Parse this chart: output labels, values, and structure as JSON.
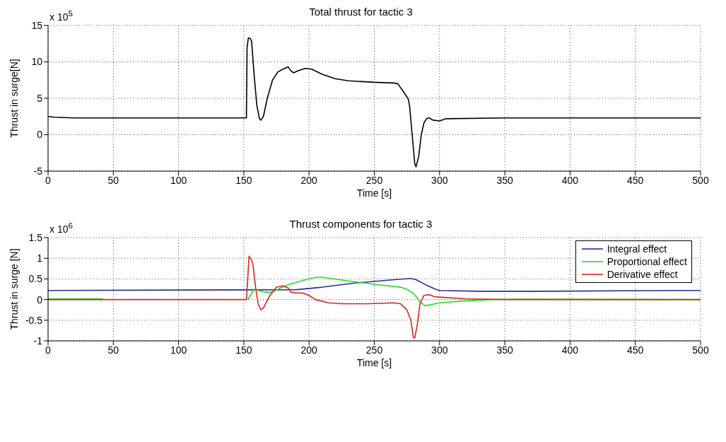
{
  "chart_data": [
    {
      "type": "line",
      "title": "Total thrust for tactic 3",
      "xlabel": "Time [s]",
      "ylabel": "Thrust in surge[N]",
      "annotations": [
        "x 10$^{5}$"
      ],
      "xlim": [
        0,
        500
      ],
      "xticks": [
        0,
        50,
        100,
        150,
        200,
        250,
        300,
        350,
        400,
        450,
        500
      ],
      "ylim": [
        -5,
        15
      ],
      "yticks": [
        -5,
        0,
        5,
        10,
        15
      ],
      "grid": true,
      "legend": false,
      "line_style": "solid",
      "series": [
        {
          "color": "#000000",
          "x": [
            0,
            5,
            20,
            152,
            152.5,
            153.5,
            155,
            156,
            158,
            160,
            162,
            163,
            165,
            168,
            172,
            176,
            180,
            184,
            186,
            188,
            192,
            197,
            202,
            210,
            220,
            230,
            250,
            265,
            268,
            272,
            276,
            277,
            279,
            281,
            282,
            284,
            286,
            288,
            290,
            292,
            295,
            300,
            305,
            350,
            500
          ],
          "values": [
            2.5,
            2.4,
            2.3,
            2.3,
            12,
            13.3,
            13.2,
            12.8,
            8,
            4,
            2.2,
            2.0,
            2.5,
            5,
            7.5,
            8.6,
            9.0,
            9.3,
            8.8,
            8.5,
            8.8,
            9.1,
            9.0,
            8.3,
            7.7,
            7.4,
            7.2,
            7.1,
            7.0,
            6.0,
            4.9,
            4.0,
            0,
            -4.0,
            -4.4,
            -3,
            0,
            1.6,
            2.2,
            2.3,
            2.0,
            1.9,
            2.2,
            2.3,
            2.3
          ]
        }
      ]
    },
    {
      "type": "line",
      "title": "Thrust components for tactic 3",
      "xlabel": "Time [s]",
      "ylabel": "Thrust in surge [N]",
      "annotations": [
        "x 10$^{6}$"
      ],
      "xlim": [
        0,
        500
      ],
      "xticks": [
        0,
        50,
        100,
        150,
        200,
        250,
        300,
        350,
        400,
        450,
        500
      ],
      "ylim": [
        -1,
        1.5
      ],
      "yticks": [
        -1,
        -0.5,
        0,
        0.5,
        1,
        1.5
      ],
      "grid": true,
      "legend": "top right",
      "line_style": "solid",
      "series": [
        {
          "name": "Integral effect",
          "color": "#2b2b9c",
          "x": [
            0,
            190,
            210,
            235,
            265,
            278,
            282,
            290,
            297,
            300,
            330,
            370,
            480,
            500
          ],
          "values": [
            0.22,
            0.24,
            0.3,
            0.4,
            0.48,
            0.51,
            0.48,
            0.35,
            0.25,
            0.22,
            0.2,
            0.2,
            0.22,
            0.22
          ]
        },
        {
          "name": "Proportional effect",
          "color": "#22dd22",
          "x": [
            0,
            42,
            43,
            152,
            153,
            158,
            160,
            166,
            172,
            178,
            185,
            195,
            205,
            210,
            230,
            250,
            270,
            275,
            280,
            285,
            289,
            300,
            320,
            340,
            360,
            500
          ],
          "values": [
            0.02,
            0.02,
            null,
            null,
            0,
            0.25,
            0.23,
            0.18,
            0.18,
            0.28,
            0.37,
            0.46,
            0.54,
            0.54,
            0.45,
            0.37,
            0.3,
            0.25,
            0.15,
            -0.05,
            -0.15,
            -0.08,
            -0.03,
            0,
            0.01,
            0
          ]
        },
        {
          "name": "Derivative effect",
          "color": "#dd2222",
          "x": [
            0,
            152,
            153,
            154,
            156,
            157,
            159,
            161,
            163,
            165,
            170,
            175,
            180,
            184,
            186,
            190,
            195,
            200,
            205,
            215,
            225,
            245,
            265,
            270,
            275,
            278,
            280,
            281,
            283,
            285,
            288,
            292,
            296,
            300,
            320,
            350,
            500
          ],
          "values": [
            0,
            0,
            0.5,
            1.05,
            0.95,
            0.85,
            0.3,
            -0.1,
            -0.25,
            -0.2,
            0.1,
            0.3,
            0.33,
            0.28,
            0.18,
            0.16,
            0.16,
            0.1,
            0,
            -0.08,
            -0.1,
            -0.1,
            -0.08,
            -0.1,
            -0.25,
            -0.5,
            -0.92,
            -0.93,
            -0.6,
            -0.1,
            0.1,
            0.12,
            0.07,
            0.06,
            0.02,
            0,
            0
          ]
        }
      ]
    }
  ]
}
